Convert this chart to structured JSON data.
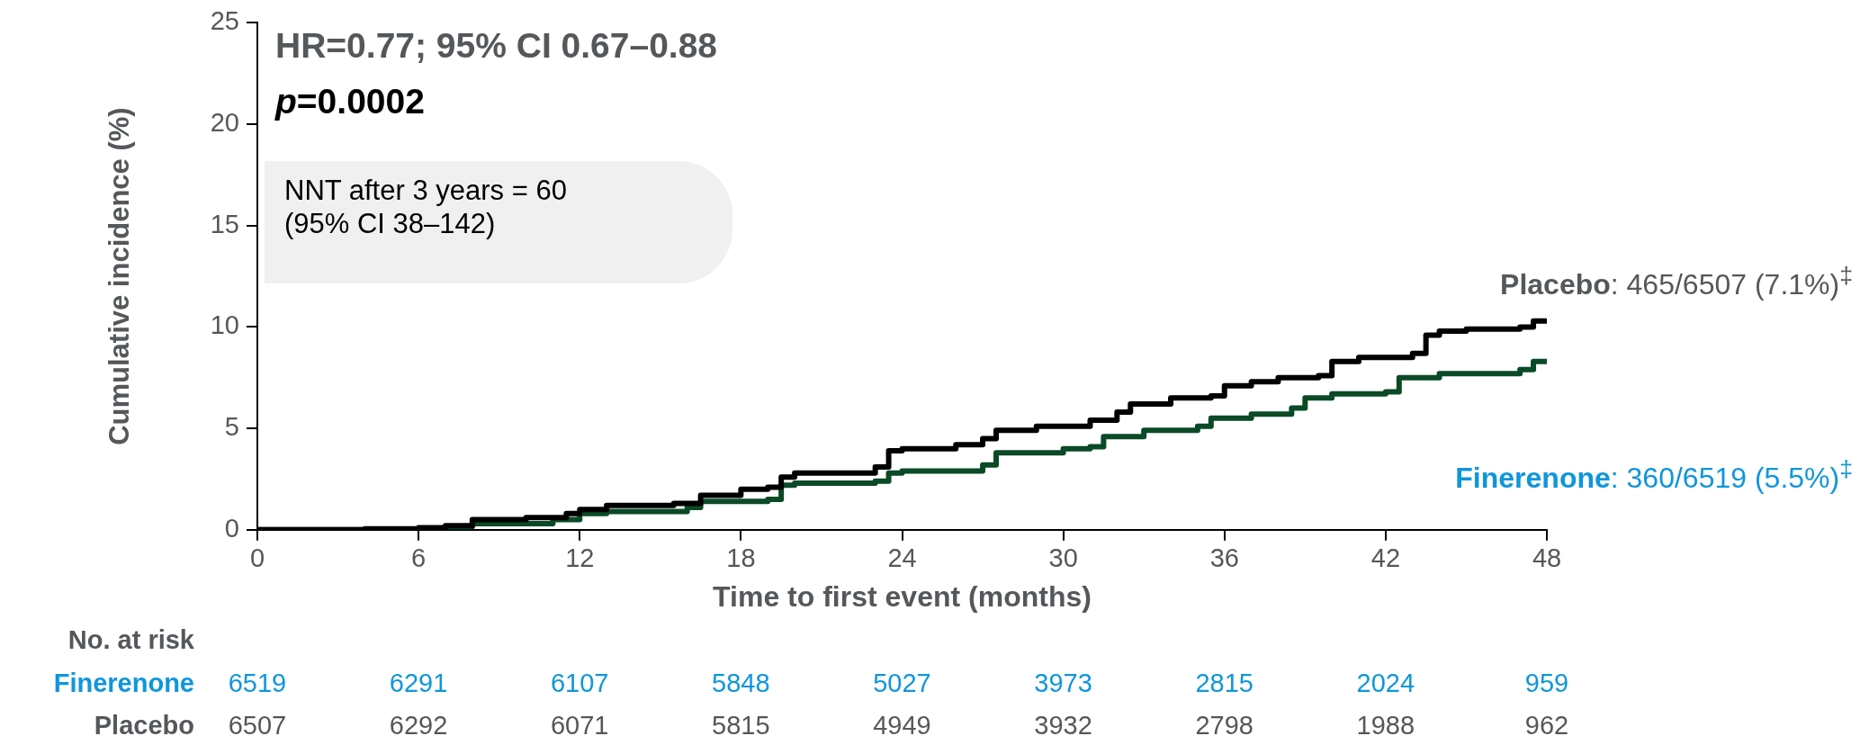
{
  "chart_data": {
    "type": "step",
    "xlabel": "Time to first event (months)",
    "ylabel": "Cumulative incidence (%)",
    "xlim": [
      0,
      48
    ],
    "xticks": [
      0,
      6,
      12,
      18,
      24,
      30,
      36,
      42,
      48
    ],
    "ylim": [
      0,
      25
    ],
    "yticks": [
      0,
      5,
      10,
      15,
      20,
      25
    ],
    "grid": false,
    "legend": false,
    "marker": "none",
    "line_style": "solid",
    "series": [
      {
        "name": "Placebo",
        "color": "#000000",
        "x": [
          0,
          4,
          6,
          7,
          8,
          10,
          11.5,
          12,
          13,
          15.5,
          16.5,
          18,
          19,
          19.5,
          20,
          23,
          23.5,
          24,
          26,
          27,
          27.5,
          29,
          31,
          32,
          32.5,
          34,
          35.5,
          36,
          37,
          38,
          39.5,
          40,
          41,
          43,
          43.5,
          44,
          45,
          47,
          47.5,
          48
        ],
        "values": [
          0,
          0.05,
          0.1,
          0.2,
          0.5,
          0.6,
          0.8,
          1.0,
          1.2,
          1.3,
          1.7,
          2.0,
          2.1,
          2.6,
          2.8,
          3.1,
          3.9,
          4.0,
          4.2,
          4.5,
          4.9,
          5.1,
          5.4,
          5.8,
          6.2,
          6.5,
          6.6,
          7.1,
          7.3,
          7.5,
          7.6,
          8.3,
          8.5,
          8.7,
          9.6,
          9.8,
          9.9,
          10.0,
          10.3,
          10.3
        ]
      },
      {
        "name": "Finerenone",
        "color": "#0b4a26",
        "x": [
          0,
          6,
          7,
          8,
          11,
          12,
          13,
          16,
          16.5,
          19,
          19.5,
          20,
          23,
          23.5,
          24,
          27,
          27.5,
          30,
          31,
          31.5,
          33,
          35,
          35.5,
          37,
          38.5,
          39,
          40,
          42,
          42.5,
          44,
          47,
          47.5,
          48
        ],
        "values": [
          0,
          0.05,
          0.15,
          0.3,
          0.5,
          0.8,
          0.9,
          1.1,
          1.4,
          1.5,
          2.2,
          2.3,
          2.4,
          2.8,
          2.9,
          3.2,
          3.8,
          4.0,
          4.1,
          4.6,
          4.9,
          5.1,
          5.5,
          5.7,
          6.0,
          6.5,
          6.7,
          6.8,
          7.5,
          7.7,
          7.9,
          8.3,
          8.3
        ]
      }
    ],
    "annotations": [
      "HR=0.77; 95% CI 0.67–0.88",
      "p=0.0002",
      "NNT after 3 years = 60\n(95% CI 38–142)",
      ": 465/6507 (7.1%)$^{‡}$",
      ": 360/6519 (5.5%)$^{‡}$",
      "No. at risk",
      "6519 6291 6107 5848 5027 3973 2815 2024 959",
      "6507 6292 6071 5815 4949 3932 2798 1988 962"
    ]
  }
}
